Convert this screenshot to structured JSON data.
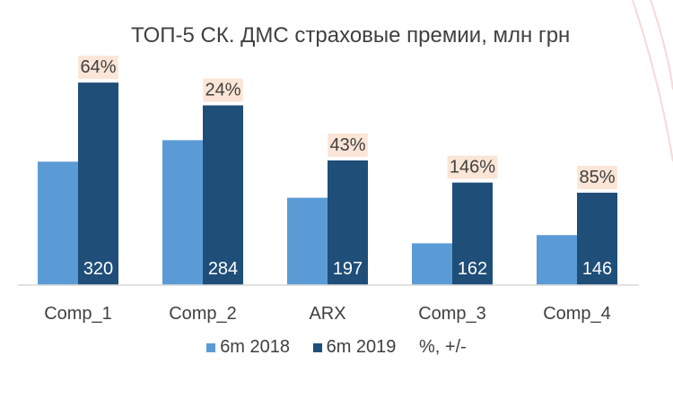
{
  "chart_data": {
    "type": "bar",
    "title": "ТОП-5 СК. ДМС страховые премии, млн грн",
    "categories": [
      "Comp_1",
      "Comp_2",
      "ARX",
      "Comp_3",
      "Comp_4"
    ],
    "series": [
      {
        "name": "6m 2018",
        "values": [
          195,
          229,
          138,
          66,
          79
        ],
        "color": "#5b9bd5"
      },
      {
        "name": "6m 2019",
        "values": [
          320,
          284,
          197,
          162,
          146
        ],
        "color": "#1f4e79"
      }
    ],
    "data_labels": [
      "320",
      "284",
      "197",
      "162",
      "146"
    ],
    "change_labels": [
      "64%",
      "24%",
      "43%",
      "146%",
      "85%"
    ],
    "change_legend": "%, +/-",
    "change_label_bg": "#fbe5d6",
    "ylim": [
      0,
      340
    ],
    "grid": false,
    "legend_position": "bottom"
  }
}
